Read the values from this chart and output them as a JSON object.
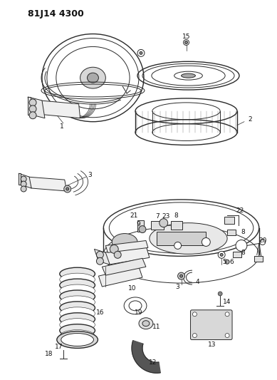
{
  "title": "81J14 4300",
  "bg_color": "#ffffff",
  "line_color": "#2a2a2a",
  "label_color": "#111111",
  "label_fontsize": 6.5,
  "figsize": [
    3.89,
    5.33
  ],
  "dpi": 100
}
